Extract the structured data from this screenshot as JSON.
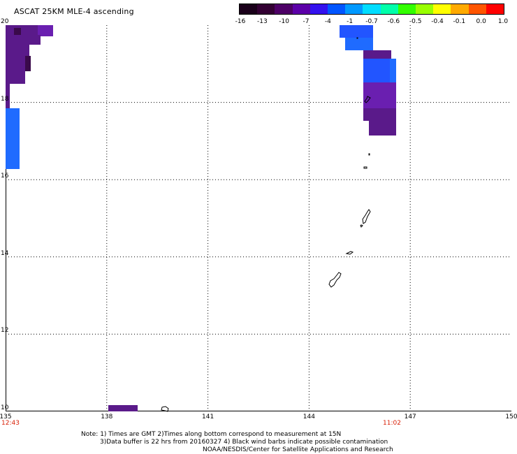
{
  "title": "ASCAT 25KM MLE-4 ascending",
  "colorbar": {
    "labels": [
      "-16",
      "-13",
      "-10",
      "-7",
      "-4",
      "-1",
      "-0.7",
      "-0.6",
      "-0.5",
      "-0.4",
      "-0.1",
      "0.0",
      "1.0"
    ],
    "colors": [
      "#1a001a",
      "#330033",
      "#4d0066",
      "#5c00a8",
      "#3311ee",
      "#0055ff",
      "#0099ff",
      "#00ddff",
      "#00ffaa",
      "#33ff00",
      "#99ff00",
      "#ffff00",
      "#ffaa00",
      "#ff5500",
      "#ff0000"
    ]
  },
  "axes": {
    "lon_ticks": [
      "135",
      "138",
      "141",
      "144",
      "147",
      "150"
    ],
    "lat_ticks": [
      "20",
      "18",
      "16",
      "14",
      "12",
      "10"
    ],
    "lon_range": [
      135,
      150
    ],
    "lat_range": [
      10,
      20
    ]
  },
  "times": {
    "left": "12:43",
    "right": "11:02"
  },
  "notes": [
    "Note: 1) Times are GMT 2)Times along bottom correspond to measurement at 15N",
    "3)Data buffer is 22 hrs from 20160327 4) Black wind barbs indicate possible contamination",
    "NOAA/NESDIS/Center for Satellite Applications and Research"
  ],
  "map_layers": {
    "swath_colors": {
      "deep": "#3a0a4a",
      "purple": "#5a1a8a",
      "violet": "#6a1fb0",
      "blue": "#2255ff",
      "blue2": "#1f6bff"
    }
  }
}
